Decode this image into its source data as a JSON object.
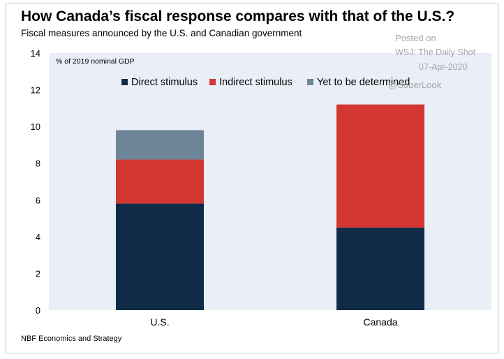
{
  "header": {
    "title": "How Canada’s fiscal response compares with that of the U.S.?",
    "subtitle": "Fiscal measures announced by the U.S. and Canadian government"
  },
  "watermark": {
    "line1": "Posted on",
    "line2": "WSJ: The Daily Shot",
    "line3": "07-Apr-2020",
    "line4": "@SoberLook"
  },
  "footer": {
    "source": "NBF Economics and Strategy"
  },
  "chart_data": {
    "type": "bar",
    "stacked": true,
    "categories": [
      "U.S.",
      "Canada"
    ],
    "series": [
      {
        "name": "Direct stimulus",
        "color": "#0f2b47",
        "values": [
          5.8,
          4.5
        ]
      },
      {
        "name": "Indirect stimulus",
        "color": "#d43632",
        "values": [
          2.4,
          6.7
        ]
      },
      {
        "name": "Yet to be determined",
        "color": "#6d8597",
        "values": [
          1.6,
          0.0
        ]
      }
    ],
    "unit_label": "% of 2019 nominal GDP",
    "ylim": [
      0,
      14
    ],
    "yticks": [
      0,
      2,
      4,
      6,
      8,
      10,
      12,
      14
    ],
    "legend_position": "top-center",
    "grid": false
  }
}
